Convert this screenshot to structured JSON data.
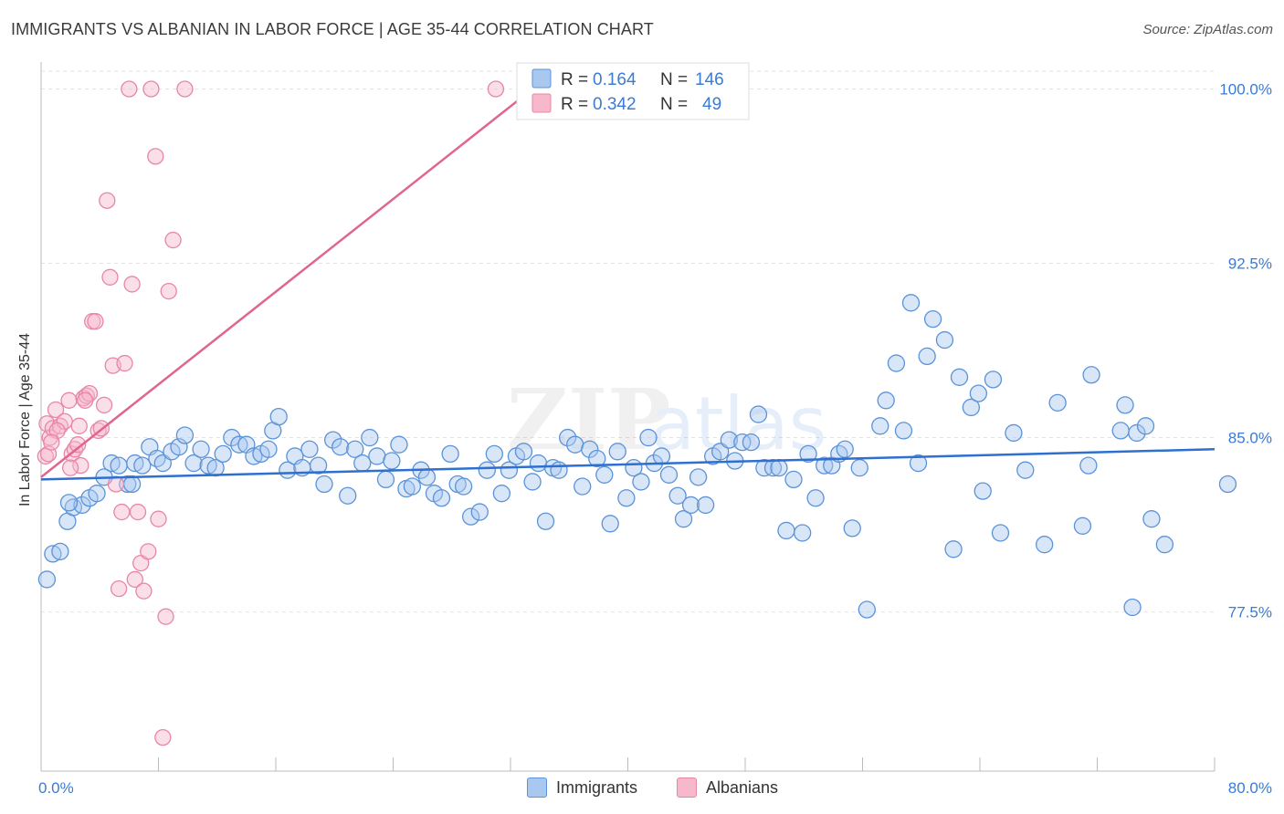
{
  "header": {
    "title": "IMMIGRANTS VS ALBANIAN IN LABOR FORCE | AGE 35-44 CORRELATION CHART",
    "source": "Source: ZipAtlas.com"
  },
  "watermark": {
    "text_zip": "ZIP",
    "text_atlas": "atlas"
  },
  "colors": {
    "immigrants_fill": "#a8c8f0",
    "immigrants_stroke": "#5b93d8",
    "immigrants_line": "#2e6fd0",
    "albanians_fill": "#f7b8cb",
    "albanians_stroke": "#e886a6",
    "albanians_line": "#e06690",
    "tick_label": "#3a7bd5",
    "grid": "#e3e3e3"
  },
  "stats_legend": {
    "rows": [
      {
        "series": "Immigrants",
        "r_label": "R =",
        "r_value": "0.164",
        "n_label": "N =",
        "n_value": "146"
      },
      {
        "series": "Albanians",
        "r_label": "R =",
        "r_value": "0.342",
        "n_label": "N =",
        "n_value": "49"
      }
    ]
  },
  "chart_data": {
    "type": "scatter",
    "title": "IMMIGRANTS VS ALBANIAN IN LABOR FORCE | AGE 35-44 CORRELATION CHART",
    "xlabel": "",
    "ylabel": "In Labor Force | Age 35-44",
    "xlim": [
      0,
      80
    ],
    "ylim": [
      70,
      101
    ],
    "x_tick_labels": [
      "0.0%",
      "80.0%"
    ],
    "y_ticks": [
      77.5,
      85.0,
      92.5,
      100.0
    ],
    "y_tick_labels": [
      "77.5%",
      "85.0%",
      "92.5%",
      "100.0%"
    ],
    "grid": true,
    "legend": [
      "Immigrants",
      "Albanians"
    ],
    "series": [
      {
        "name": "Immigrants",
        "r": 0.164,
        "n": 146,
        "trend": {
          "x": [
            0,
            80
          ],
          "y": [
            83.2,
            84.5
          ]
        },
        "points": [
          [
            0.4,
            78.9
          ],
          [
            0.8,
            80.0
          ],
          [
            1.3,
            80.1
          ],
          [
            1.8,
            81.4
          ],
          [
            2.2,
            82.0
          ],
          [
            2.8,
            82.1
          ],
          [
            3.3,
            82.4
          ],
          [
            3.8,
            82.6
          ],
          [
            4.3,
            83.3
          ],
          [
            4.8,
            83.9
          ],
          [
            5.3,
            83.8
          ],
          [
            5.9,
            83.0
          ],
          [
            6.4,
            83.9
          ],
          [
            6.9,
            83.8
          ],
          [
            7.4,
            84.6
          ],
          [
            7.9,
            84.1
          ],
          [
            8.3,
            83.9
          ],
          [
            8.9,
            84.4
          ],
          [
            9.4,
            84.6
          ],
          [
            9.8,
            85.1
          ],
          [
            10.4,
            83.9
          ],
          [
            10.9,
            84.5
          ],
          [
            11.4,
            83.8
          ],
          [
            11.9,
            83.7
          ],
          [
            12.4,
            84.3
          ],
          [
            13.0,
            85.0
          ],
          [
            13.5,
            84.7
          ],
          [
            14.0,
            84.7
          ],
          [
            14.5,
            84.2
          ],
          [
            15.0,
            84.3
          ],
          [
            15.5,
            84.5
          ],
          [
            15.8,
            85.3
          ],
          [
            16.2,
            85.9
          ],
          [
            16.8,
            83.6
          ],
          [
            17.3,
            84.2
          ],
          [
            17.8,
            83.7
          ],
          [
            18.3,
            84.5
          ],
          [
            18.9,
            83.8
          ],
          [
            19.3,
            83.0
          ],
          [
            19.9,
            84.9
          ],
          [
            20.4,
            84.6
          ],
          [
            20.9,
            82.5
          ],
          [
            21.4,
            84.5
          ],
          [
            21.9,
            83.9
          ],
          [
            22.4,
            85.0
          ],
          [
            22.9,
            84.2
          ],
          [
            23.5,
            83.2
          ],
          [
            23.9,
            84.0
          ],
          [
            24.4,
            84.7
          ],
          [
            24.9,
            82.8
          ],
          [
            25.3,
            82.9
          ],
          [
            25.9,
            83.6
          ],
          [
            26.3,
            83.3
          ],
          [
            26.8,
            82.6
          ],
          [
            27.3,
            82.4
          ],
          [
            27.9,
            84.3
          ],
          [
            28.4,
            83.0
          ],
          [
            28.8,
            82.9
          ],
          [
            29.3,
            81.6
          ],
          [
            29.9,
            81.8
          ],
          [
            30.4,
            83.6
          ],
          [
            30.9,
            84.3
          ],
          [
            31.4,
            82.6
          ],
          [
            31.9,
            83.6
          ],
          [
            32.4,
            84.2
          ],
          [
            32.9,
            84.4
          ],
          [
            33.5,
            83.1
          ],
          [
            33.9,
            83.9
          ],
          [
            34.4,
            81.4
          ],
          [
            34.9,
            83.7
          ],
          [
            35.3,
            83.6
          ],
          [
            35.9,
            85.0
          ],
          [
            36.4,
            84.7
          ],
          [
            36.9,
            82.9
          ],
          [
            37.4,
            84.5
          ],
          [
            37.9,
            84.1
          ],
          [
            38.4,
            83.4
          ],
          [
            38.8,
            81.3
          ],
          [
            39.3,
            84.4
          ],
          [
            39.9,
            82.4
          ],
          [
            40.4,
            83.7
          ],
          [
            40.9,
            83.1
          ],
          [
            41.4,
            85.0
          ],
          [
            41.8,
            83.9
          ],
          [
            42.3,
            84.2
          ],
          [
            42.8,
            83.4
          ],
          [
            43.4,
            82.5
          ],
          [
            43.8,
            81.5
          ],
          [
            44.3,
            82.1
          ],
          [
            44.8,
            83.3
          ],
          [
            45.3,
            82.1
          ],
          [
            45.8,
            84.2
          ],
          [
            46.3,
            84.4
          ],
          [
            46.9,
            84.9
          ],
          [
            47.3,
            84.0
          ],
          [
            47.8,
            84.8
          ],
          [
            48.4,
            84.8
          ],
          [
            48.9,
            86.0
          ],
          [
            49.3,
            83.7
          ],
          [
            49.9,
            83.7
          ],
          [
            50.3,
            83.7
          ],
          [
            50.8,
            81.0
          ],
          [
            51.3,
            83.2
          ],
          [
            51.9,
            80.9
          ],
          [
            52.3,
            84.3
          ],
          [
            52.8,
            82.4
          ],
          [
            53.4,
            83.8
          ],
          [
            53.9,
            83.8
          ],
          [
            54.4,
            84.3
          ],
          [
            54.8,
            84.5
          ],
          [
            55.3,
            81.1
          ],
          [
            55.8,
            83.7
          ],
          [
            56.3,
            77.6
          ],
          [
            57.2,
            85.5
          ],
          [
            57.6,
            86.6
          ],
          [
            58.3,
            88.2
          ],
          [
            58.8,
            85.3
          ],
          [
            59.3,
            90.8
          ],
          [
            59.8,
            83.9
          ],
          [
            60.4,
            88.5
          ],
          [
            60.8,
            90.1
          ],
          [
            61.6,
            89.2
          ],
          [
            62.2,
            80.2
          ],
          [
            62.6,
            87.6
          ],
          [
            63.4,
            86.3
          ],
          [
            63.9,
            86.9
          ],
          [
            64.2,
            82.7
          ],
          [
            64.9,
            87.5
          ],
          [
            65.4,
            80.9
          ],
          [
            66.3,
            85.2
          ],
          [
            67.1,
            83.6
          ],
          [
            68.4,
            80.4
          ],
          [
            69.3,
            86.5
          ],
          [
            71.0,
            81.2
          ],
          [
            71.4,
            83.8
          ],
          [
            71.6,
            87.7
          ],
          [
            73.6,
            85.3
          ],
          [
            73.9,
            86.4
          ],
          [
            74.4,
            77.7
          ],
          [
            74.7,
            85.2
          ],
          [
            75.3,
            85.5
          ],
          [
            75.7,
            81.5
          ],
          [
            76.6,
            80.4
          ],
          [
            80.9,
            83.0
          ],
          [
            1.9,
            82.2
          ],
          [
            6.2,
            83.0
          ]
        ]
      },
      {
        "name": "Albanians",
        "r": 0.342,
        "n": 49,
        "trend": {
          "x": [
            0,
            33.5
          ],
          "y": [
            83.3,
            100.0
          ]
        },
        "points": [
          [
            0.3,
            84.2
          ],
          [
            0.4,
            85.6
          ],
          [
            0.6,
            85.0
          ],
          [
            0.8,
            85.4
          ],
          [
            1.0,
            86.2
          ],
          [
            1.3,
            85.5
          ],
          [
            1.6,
            85.7
          ],
          [
            1.9,
            86.6
          ],
          [
            2.1,
            84.3
          ],
          [
            2.3,
            84.5
          ],
          [
            2.5,
            84.7
          ],
          [
            2.7,
            83.8
          ],
          [
            2.9,
            86.7
          ],
          [
            3.1,
            86.8
          ],
          [
            3.3,
            86.9
          ],
          [
            3.5,
            90.0
          ],
          [
            3.7,
            90.0
          ],
          [
            3.9,
            85.3
          ],
          [
            4.1,
            85.4
          ],
          [
            4.3,
            86.4
          ],
          [
            4.5,
            95.2
          ],
          [
            4.7,
            91.9
          ],
          [
            4.9,
            88.1
          ],
          [
            5.1,
            83.0
          ],
          [
            5.3,
            78.5
          ],
          [
            5.5,
            81.8
          ],
          [
            5.7,
            88.2
          ],
          [
            6.0,
            100.0
          ],
          [
            6.2,
            91.6
          ],
          [
            6.4,
            78.9
          ],
          [
            6.6,
            81.8
          ],
          [
            6.8,
            79.6
          ],
          [
            7.0,
            78.4
          ],
          [
            7.3,
            80.1
          ],
          [
            7.5,
            100.0
          ],
          [
            7.8,
            97.1
          ],
          [
            8.0,
            81.5
          ],
          [
            8.3,
            72.1
          ],
          [
            8.5,
            77.3
          ],
          [
            8.7,
            91.3
          ],
          [
            9.0,
            93.5
          ],
          [
            9.8,
            100.0
          ],
          [
            31.0,
            100.0
          ],
          [
            0.5,
            84.3
          ],
          [
            1.1,
            85.3
          ],
          [
            2.0,
            83.7
          ],
          [
            2.6,
            85.5
          ],
          [
            3.0,
            86.6
          ],
          [
            0.7,
            84.8
          ]
        ]
      }
    ]
  },
  "bottom_legend": {
    "items": [
      {
        "label": "Immigrants"
      },
      {
        "label": "Albanians"
      }
    ]
  }
}
